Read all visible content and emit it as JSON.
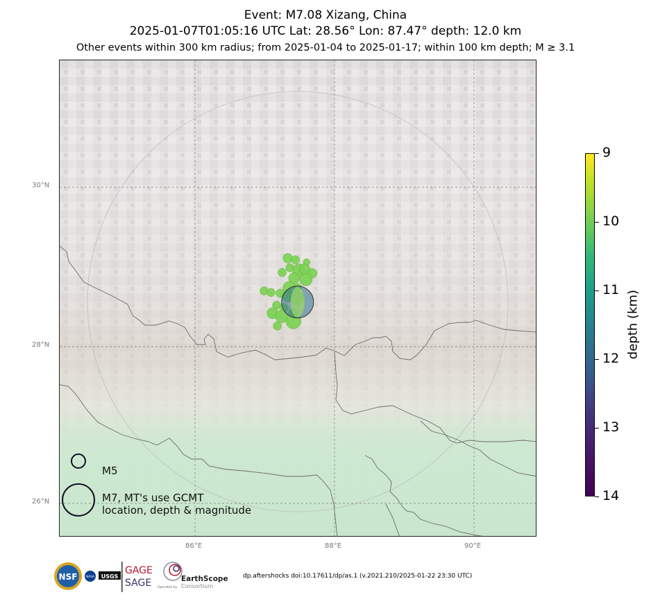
{
  "title": {
    "line1": "Event: M7.08 Xizang, China",
    "line2": "2025-01-07T01:05:16 UTC Lat: 28.56° Lon: 87.47° depth: 12.0 km",
    "line3": "Other events within 300 km radius; from 2025-01-04 to 2025-01-17; within 100 km depth; M ≥ 3.1"
  },
  "map": {
    "lat_ticks": [
      "30°N",
      "28°N",
      "26°N"
    ],
    "lon_ticks": [
      "86°E",
      "88°E",
      "90°E"
    ],
    "mainshock": {
      "lat": 28.56,
      "lon": 87.47,
      "depth_km": 12.0,
      "magnitude": 7.08
    },
    "aftershocks": [
      {
        "lon": 87.33,
        "lat": 29.11
      },
      {
        "lon": 87.44,
        "lat": 29.09
      },
      {
        "lon": 87.6,
        "lat": 29.06
      },
      {
        "lon": 87.36,
        "lat": 28.99
      },
      {
        "lon": 87.49,
        "lat": 28.96
      },
      {
        "lon": 87.57,
        "lat": 28.97
      },
      {
        "lon": 87.25,
        "lat": 28.93
      },
      {
        "lon": 87.68,
        "lat": 28.92
      },
      {
        "lon": 87.42,
        "lat": 28.86
      },
      {
        "lon": 87.59,
        "lat": 28.84
      },
      {
        "lon": 87.35,
        "lat": 28.74
      },
      {
        "lon": 87.47,
        "lat": 28.74
      },
      {
        "lon": 86.99,
        "lat": 28.7
      },
      {
        "lon": 87.09,
        "lat": 28.68
      },
      {
        "lon": 87.22,
        "lat": 28.67
      },
      {
        "lon": 87.33,
        "lat": 28.63
      },
      {
        "lon": 87.46,
        "lat": 28.61
      },
      {
        "lon": 87.17,
        "lat": 28.52
      },
      {
        "lon": 87.28,
        "lat": 28.49
      },
      {
        "lon": 87.4,
        "lat": 28.43
      },
      {
        "lon": 87.11,
        "lat": 28.42
      },
      {
        "lon": 87.24,
        "lat": 28.38
      },
      {
        "lon": 87.41,
        "lat": 28.32
      },
      {
        "lon": 87.18,
        "lat": 28.26
      }
    ],
    "aftershock_color": "#7ad151",
    "search_radius_km": 300
  },
  "legend": {
    "m5_label": "M5",
    "m7_label_line1": "M7, MT's use GCMT",
    "m7_label_line2": "location, depth & magnitude"
  },
  "colorbar": {
    "title": "depth (km)",
    "ticks": [
      "9",
      "10",
      "11",
      "12",
      "13",
      "14"
    ],
    "range": [
      9,
      14
    ]
  },
  "footer": {
    "gage": "GAGE",
    "sage": "SAGE",
    "earthscope": "EarthScope",
    "consortium": "Consortium",
    "operated_by": "Operated by",
    "nsf": "NSF",
    "nasa": "NASA",
    "usgs": "USGS",
    "doi": "dp.aftershocks doi:10.17611/dp/as.1 (v.2021.210/2025-01-22 23:30 UTC)"
  }
}
